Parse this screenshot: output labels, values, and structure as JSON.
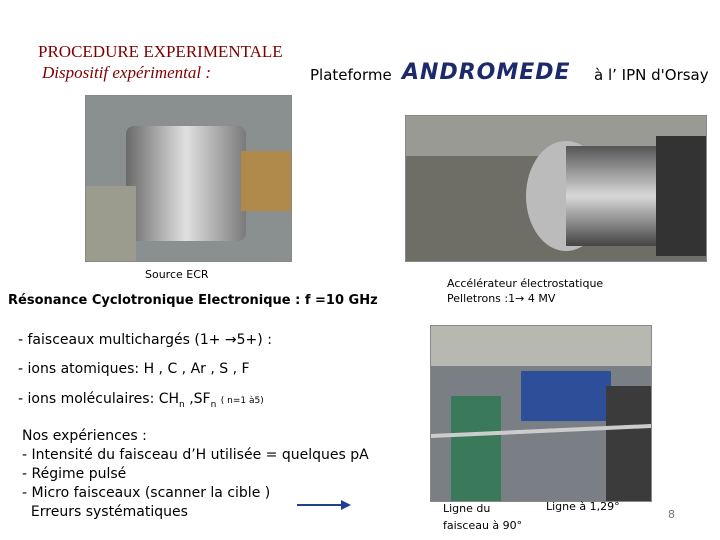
{
  "header": {
    "title": "PROCEDURE EXPERIMENTALE",
    "subtitle": "Dispositif expérimental :",
    "platform": "Plateforme",
    "logo": "ANDROMEDE",
    "location": "à l’ IPN d'Orsay"
  },
  "left_photo": {
    "caption": "Source ECR"
  },
  "ecr": "Résonance Cyclotronique Electronique : f =10 GHz",
  "right_photo": {
    "caption_lines": [
      "Accélérateur électrostatique",
      "Pelletrons :1→ 4 MV"
    ]
  },
  "beams": {
    "multicharged": "- faisceaux multichargés (1+ →5+) :",
    "atomic": "- ions atomiques: H , C , Ar , S , F",
    "molecular": {
      "prefix": "- ions moléculaires: CH",
      "sub1": "n",
      "mid": " ,SF",
      "sub2": "n",
      "note": "( n=1 à5)"
    }
  },
  "experiments": {
    "heading": "Nos expériences :",
    "items": [
      "- Intensité du faisceau d’H utilisée = quelques pA",
      "- Régime pulsé",
      "- Micro faisceaux  (scanner la cible )",
      "  Erreurs systématiques"
    ]
  },
  "bottom_photo": {
    "label_left": [
      "Ligne du",
      "faisceau à 90°"
    ],
    "label_right": "Ligne à 1,29°"
  },
  "page_number": "8"
}
